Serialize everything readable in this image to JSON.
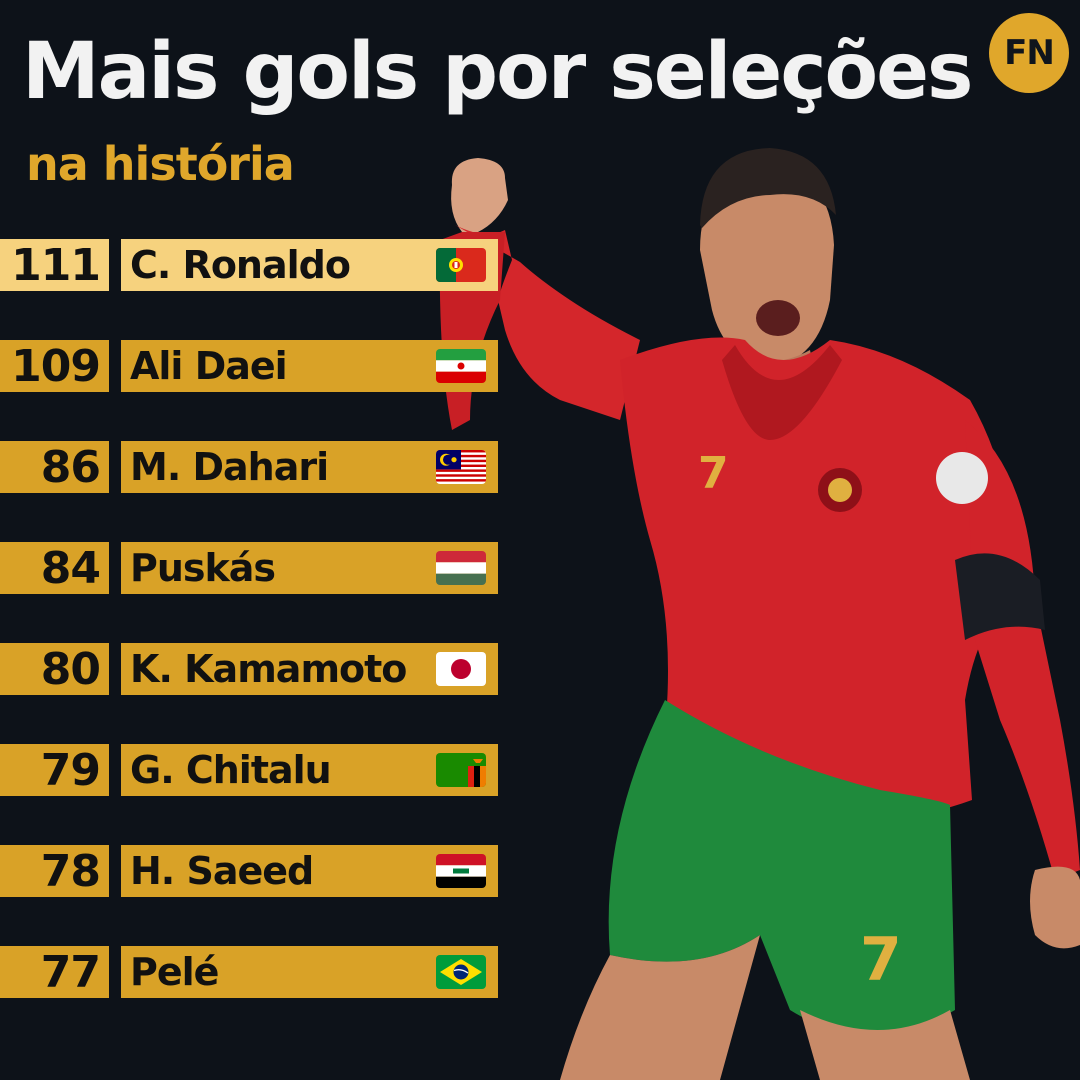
{
  "header": {
    "title": "Mais gols por seleções",
    "subtitle": "na história",
    "logo_text": "FN"
  },
  "colors": {
    "background": "#0d1219",
    "accent": "#d9a227",
    "highlight": "#f6d27e",
    "title": "#f2f2f2",
    "subtitle": "#e0a72b"
  },
  "ranking": [
    {
      "goals": "111",
      "name": "C. Ronaldo",
      "flag": "portugal-flag-icon"
    },
    {
      "goals": "109",
      "name": "Ali Daei",
      "flag": "iran-flag-icon"
    },
    {
      "goals": "86",
      "name": "M. Dahari",
      "flag": "malaysia-flag-icon"
    },
    {
      "goals": "84",
      "name": "Puskás",
      "flag": "hungary-flag-icon"
    },
    {
      "goals": "80",
      "name": "K. Kamamoto",
      "flag": "japan-flag-icon"
    },
    {
      "goals": "79",
      "name": "G. Chitalu",
      "flag": "zambia-flag-icon"
    },
    {
      "goals": "78",
      "name": "H. Saeed",
      "flag": "iraq-flag-icon"
    },
    {
      "goals": "77",
      "name": "Pelé",
      "flag": "brazil-flag-icon"
    }
  ],
  "photo": {
    "jersey_number": "7"
  }
}
